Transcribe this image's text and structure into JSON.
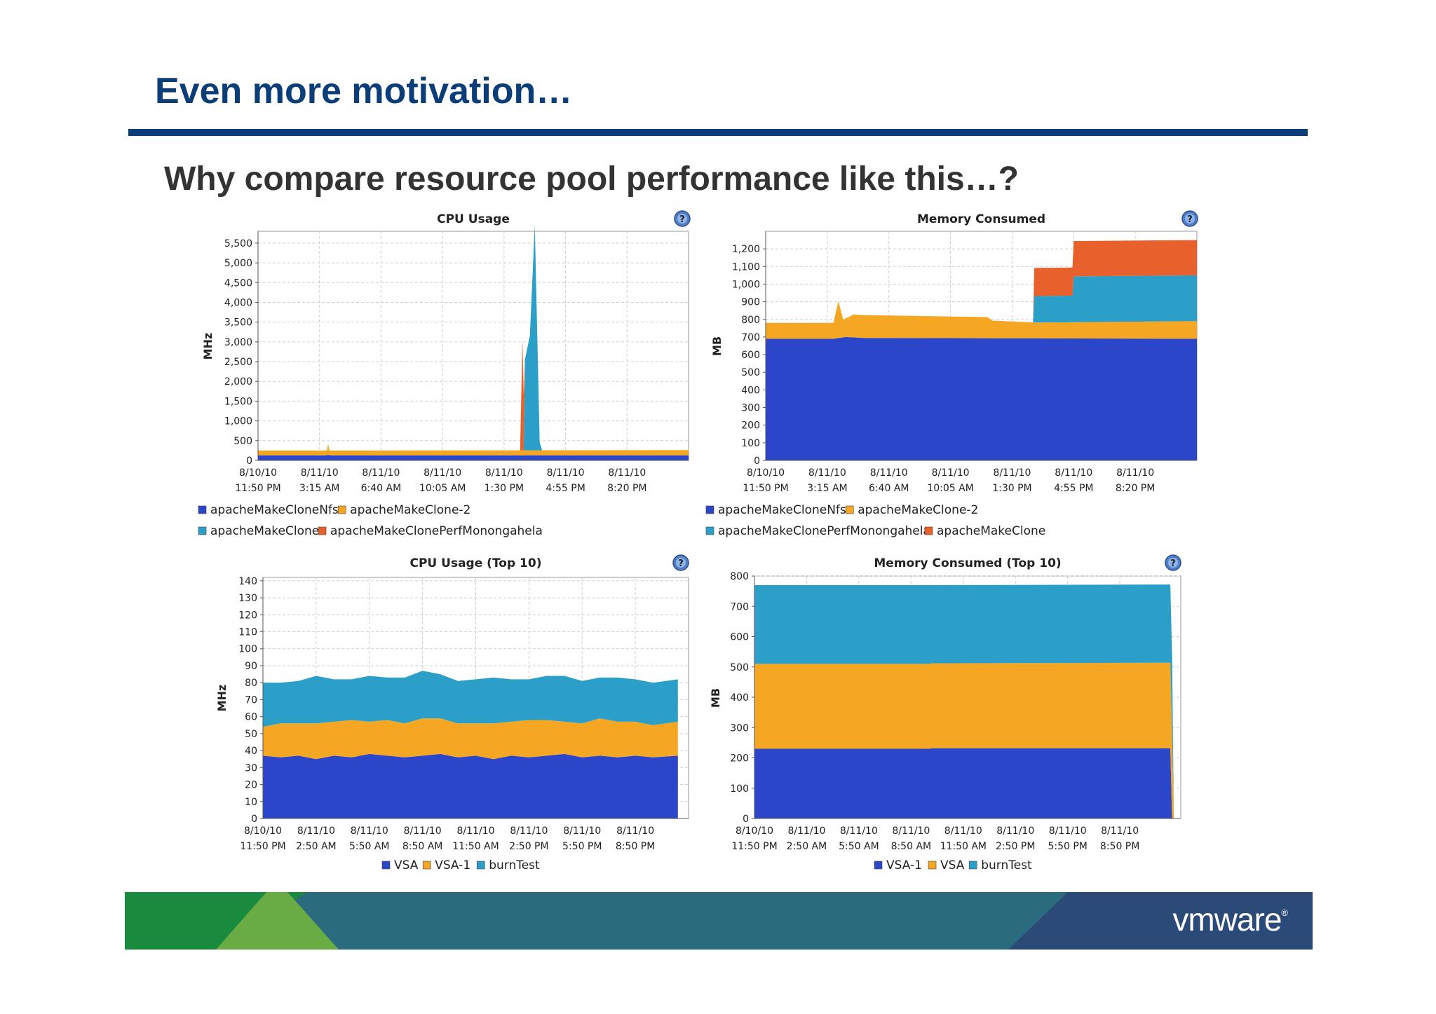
{
  "slide": {
    "title": "Even more motivation…",
    "subtitle": "Why compare resource pool performance like this…?",
    "logo": "vmware",
    "logo_registered": "®",
    "colors": {
      "title": "#0b3d78",
      "footer_green": "#1a8a3e",
      "footer_light_green": "#6aac44",
      "footer_teal": "#2a6b7e",
      "footer_navy": "#2c4a78"
    }
  },
  "chart_data": [
    {
      "type": "area",
      "title": "CPU Usage",
      "ylabel": "MHz",
      "ylim": [
        0,
        5800
      ],
      "yticks": [
        0,
        500,
        1000,
        1500,
        2000,
        2500,
        3000,
        3500,
        4000,
        4500,
        5000,
        5500
      ],
      "yticklabels": [
        "0",
        "500",
        "1,000",
        "1,500",
        "2,000",
        "2,500",
        "3,000",
        "3,500",
        "4,000",
        "4,500",
        "5,000",
        "5,500"
      ],
      "xlim": [
        0,
        35
      ],
      "xticks": [
        0,
        5,
        10,
        15,
        20,
        25,
        30
      ],
      "xticklabels": [
        [
          "8/10/10",
          "11:50 PM"
        ],
        [
          "8/11/10",
          "3:15 AM"
        ],
        [
          "8/11/10",
          "6:40 AM"
        ],
        [
          "8/11/10",
          "10:05 AM"
        ],
        [
          "8/11/10",
          "1:30 PM"
        ],
        [
          "8/11/10",
          "4:55 PM"
        ],
        [
          "8/11/10",
          "8:20 PM"
        ]
      ],
      "grid": true,
      "help_icon": "question-icon",
      "legend_position": "bottom",
      "series": [
        {
          "name": "apacheMakeCloneNfs",
          "color": "#2b46c8",
          "x": [
            0,
            5.5,
            5.7,
            5.9,
            15,
            35
          ],
          "y": [
            130,
            130,
            140,
            130,
            130,
            130
          ]
        },
        {
          "name": "apacheMakeClone-2",
          "color": "#f5a623",
          "x": [
            0,
            5.6,
            5.7,
            5.8,
            35
          ],
          "y": [
            120,
            120,
            280,
            120,
            130
          ]
        },
        {
          "name": "apacheMakeClone",
          "color": "#2b9fc8",
          "x": [
            0,
            21.6,
            21.7,
            22.1,
            22.5,
            22.9,
            23.1,
            35
          ],
          "y": [
            0,
            0,
            2300,
            2900,
            5700,
            200,
            0,
            0
          ]
        },
        {
          "name": "apacheMakeClonePerfMonongahela",
          "color": "#e8602c",
          "x": [
            0,
            21.3,
            21.5,
            21.7,
            35
          ],
          "y": [
            0,
            0,
            2800,
            0,
            0
          ]
        }
      ]
    },
    {
      "type": "area",
      "title": "Memory Consumed",
      "ylabel": "MB",
      "ylim": [
        0,
        1300
      ],
      "yticks": [
        0,
        100,
        200,
        300,
        400,
        500,
        600,
        700,
        800,
        900,
        1000,
        1100,
        1200
      ],
      "yticklabels": [
        "0",
        "100",
        "200",
        "300",
        "400",
        "500",
        "600",
        "700",
        "800",
        "900",
        "1,000",
        "1,100",
        "1,200"
      ],
      "xlim": [
        0,
        35
      ],
      "xticks": [
        0,
        5,
        10,
        15,
        20,
        25,
        30
      ],
      "xticklabels": [
        [
          "8/10/10",
          "11:50 PM"
        ],
        [
          "8/11/10",
          "3:15 AM"
        ],
        [
          "8/11/10",
          "6:40 AM"
        ],
        [
          "8/11/10",
          "10:05 AM"
        ],
        [
          "8/11/10",
          "1:30 PM"
        ],
        [
          "8/11/10",
          "4:55 PM"
        ],
        [
          "8/11/10",
          "8:20 PM"
        ]
      ],
      "grid": true,
      "help_icon": "question-icon",
      "legend_position": "bottom",
      "series": [
        {
          "name": "apacheMakeCloneNfs",
          "color": "#2b46c8",
          "x": [
            0,
            5.5,
            6.5,
            8,
            35
          ],
          "y": [
            690,
            690,
            700,
            695,
            690
          ]
        },
        {
          "name": "apacheMakeClone-2",
          "color": "#f5a623",
          "x": [
            0,
            5.5,
            5.9,
            6.3,
            6.9,
            7.1,
            18,
            18.4,
            21.8,
            22,
            35
          ],
          "y": [
            90,
            90,
            210,
            100,
            120,
            130,
            120,
            100,
            90,
            90,
            100
          ]
        },
        {
          "name": "apacheMakeClonePerfMonongahela",
          "color": "#2b9fc8",
          "x": [
            0,
            21.7,
            21.8,
            24.9,
            25,
            35
          ],
          "y": [
            0,
            0,
            150,
            150,
            260,
            260
          ]
        },
        {
          "name": "apacheMakeClone",
          "color": "#e8602c",
          "x": [
            0,
            21.7,
            21.8,
            24.9,
            25,
            35
          ],
          "y": [
            0,
            0,
            160,
            160,
            200,
            200
          ]
        }
      ]
    },
    {
      "type": "area",
      "title": "CPU Usage (Top 10)",
      "ylabel": "MHz",
      "ylim": [
        0,
        142
      ],
      "yticks": [
        0,
        10,
        20,
        30,
        40,
        50,
        60,
        70,
        80,
        90,
        100,
        110,
        120,
        130,
        140
      ],
      "yticklabels": [
        "0",
        "10",
        "20",
        "30",
        "40",
        "50",
        "60",
        "70",
        "80",
        "90",
        "100",
        "110",
        "120",
        "130",
        "140"
      ],
      "xlim": [
        0,
        24
      ],
      "xticks": [
        0,
        3,
        6,
        9,
        12,
        15,
        18,
        21
      ],
      "xticklabels": [
        [
          "8/10/10",
          "11:50 PM"
        ],
        [
          "8/11/10",
          "2:50 AM"
        ],
        [
          "8/11/10",
          "5:50 AM"
        ],
        [
          "8/11/10",
          "8:50 AM"
        ],
        [
          "8/11/10",
          "11:50 AM"
        ],
        [
          "8/11/10",
          "2:50 PM"
        ],
        [
          "8/11/10",
          "5:50 PM"
        ],
        [
          "8/11/10",
          "8:50 PM"
        ]
      ],
      "grid": true,
      "help_icon": "question-icon",
      "legend_position": "bottom",
      "series": [
        {
          "name": "VSA",
          "color": "#2b46c8",
          "x": [
            0,
            1,
            2,
            3,
            4,
            5,
            6,
            7,
            8,
            9,
            10,
            11,
            12,
            13,
            14,
            15,
            16,
            17,
            18,
            19,
            20,
            21,
            22,
            23.4
          ],
          "y": [
            37,
            36,
            37,
            35,
            37,
            36,
            38,
            37,
            36,
            37,
            38,
            36,
            37,
            35,
            37,
            36,
            37,
            38,
            36,
            37,
            36,
            37,
            36,
            37
          ]
        },
        {
          "name": "VSA-1",
          "color": "#f5a623",
          "x": [
            0,
            1,
            2,
            3,
            4,
            5,
            6,
            7,
            8,
            9,
            10,
            11,
            12,
            13,
            14,
            15,
            16,
            17,
            18,
            19,
            20,
            21,
            22,
            23.4
          ],
          "y": [
            17,
            20,
            19,
            21,
            20,
            22,
            19,
            21,
            20,
            22,
            21,
            20,
            19,
            21,
            20,
            22,
            21,
            19,
            20,
            22,
            21,
            20,
            19,
            20
          ]
        },
        {
          "name": "burnTest",
          "color": "#2b9fc8",
          "x": [
            0,
            1,
            2,
            3,
            4,
            5,
            6,
            7,
            8,
            9,
            10,
            11,
            12,
            13,
            14,
            15,
            16,
            17,
            18,
            19,
            20,
            21,
            22,
            23.4
          ],
          "y": [
            26,
            24,
            25,
            28,
            25,
            24,
            27,
            25,
            27,
            28,
            26,
            25,
            26,
            27,
            25,
            24,
            26,
            27,
            25,
            24,
            26,
            25,
            25,
            25
          ]
        }
      ]
    },
    {
      "type": "area",
      "title": "Memory Consumed (Top 10)",
      "ylabel": "MB",
      "ylim": [
        0,
        800
      ],
      "yticks": [
        0,
        100,
        200,
        300,
        400,
        500,
        600,
        700,
        800
      ],
      "yticklabels": [
        "0",
        "100",
        "200",
        "300",
        "400",
        "500",
        "600",
        "700",
        "800"
      ],
      "xlim": [
        0,
        24.5
      ],
      "xticks": [
        0,
        3,
        6,
        9,
        12,
        15,
        18,
        21
      ],
      "xticklabels": [
        [
          "8/10/10",
          "11:50 PM"
        ],
        [
          "8/11/10",
          "2:50 AM"
        ],
        [
          "8/11/10",
          "5:50 AM"
        ],
        [
          "8/11/10",
          "8:50 AM"
        ],
        [
          "8/11/10",
          "11:50 AM"
        ],
        [
          "8/11/10",
          "2:50 PM"
        ],
        [
          "8/11/10",
          "5:50 PM"
        ],
        [
          "8/11/10",
          "8:50 PM"
        ]
      ],
      "grid": true,
      "help_icon": "question-icon",
      "legend_position": "bottom",
      "series": [
        {
          "name": "VSA-1",
          "color": "#2b46c8",
          "x": [
            0,
            10,
            10.2,
            23.9,
            24,
            24.1
          ],
          "y": [
            230,
            230,
            232,
            232,
            0,
            0
          ]
        },
        {
          "name": "VSA",
          "color": "#f5a623",
          "x": [
            0,
            10,
            10.2,
            23.9,
            24,
            24.1
          ],
          "y": [
            280,
            280,
            280,
            282,
            280,
            0
          ]
        },
        {
          "name": "burnTest",
          "color": "#2b9fc8",
          "x": [
            0,
            10,
            10.2,
            23.9,
            24,
            24.1
          ],
          "y": [
            260,
            260,
            258,
            258,
            260,
            0
          ]
        }
      ]
    }
  ]
}
